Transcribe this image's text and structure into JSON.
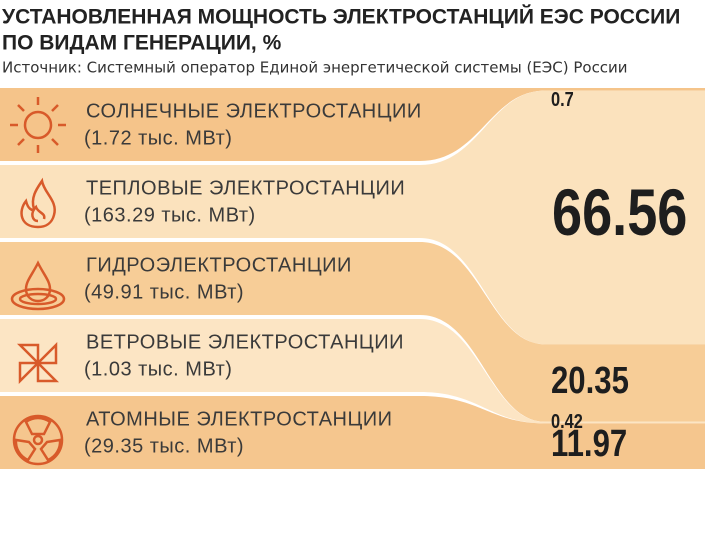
{
  "chart_data": {
    "type": "sankey",
    "title": [
      "УСТАНОВЛЕННАЯ МОЩНОСТЬ ЭЛЕКТРОСТАНЦИЙ ЕЭС РОССИИ",
      "ПО ВИДАМ ГЕНЕРАЦИИ, %"
    ],
    "source": "Источник: Системный оператор Единой энергетической системы (ЕЭС) России",
    "categories": [
      "СОЛНЕЧНЫЕ ЭЛЕКТРОСТАНЦИИ",
      "ТЕПЛОВЫЕ ЭЛЕКТРОСТАНЦИИ",
      "ГИДРОЭЛЕКТРОСТАНЦИИ",
      "ВЕТРОВЫЕ ЭЛЕКТРОСТАНЦИИ",
      "АТОМНЫЕ ЭЛЕКТРОСТАНЦИИ"
    ],
    "details": [
      "(1.72 тыс. МВт)",
      "(163.29 тыс. МВт)",
      "(49.91 тыс. МВт)",
      "(1.03 тыс. МВт)",
      "(29.35 тыс. МВт)"
    ],
    "values": [
      0.7,
      66.56,
      20.35,
      0.42,
      11.97
    ],
    "colors": [
      "#f5c48a",
      "#fbe2bd",
      "#f7cd97",
      "#fce5c4",
      "#f5c68e"
    ]
  }
}
